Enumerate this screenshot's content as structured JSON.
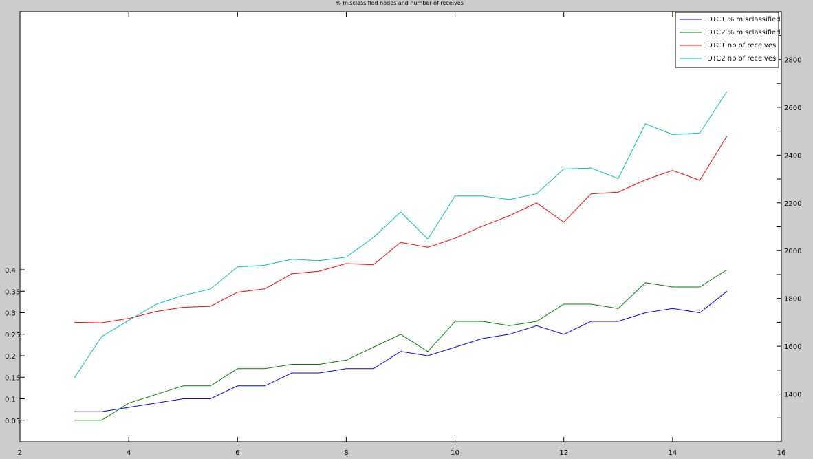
{
  "chart_data": {
    "type": "line",
    "title": "% misclassified nodes and number of receives",
    "xlim": [
      2,
      16
    ],
    "x_ticks": [
      2,
      4,
      6,
      8,
      10,
      12,
      14,
      16
    ],
    "left_axis": {
      "ylim": [
        0,
        1
      ],
      "ticks": [
        0.05,
        0.1,
        0.15,
        0.2,
        0.25,
        0.3,
        0.35,
        0.4
      ],
      "tick_labels": [
        "0.05",
        "0.1",
        "0.15",
        "0.2",
        "0.25",
        "0.3",
        "0.35",
        "0.4"
      ]
    },
    "right_axis": {
      "ylim": [
        1200,
        3000
      ],
      "ticks": [
        1200,
        1300,
        1400,
        1500,
        1600,
        1700,
        1800,
        1900,
        2000,
        2100,
        2200,
        2300,
        2400,
        2500,
        2600,
        2700,
        2800,
        2900
      ],
      "tick_labels": [
        "",
        "",
        "1400",
        "",
        "1600",
        "",
        "1800",
        "",
        "2000",
        "",
        "2200",
        "",
        "2400",
        "",
        "2600",
        "",
        "2800",
        ""
      ]
    },
    "grid": false,
    "legend_position": "top-right",
    "x": [
      3,
      3.5,
      4,
      4.5,
      5,
      5.5,
      6,
      6.5,
      7,
      7.5,
      8,
      8.5,
      9,
      9.5,
      10,
      10.5,
      11,
      11.5,
      12,
      12.5,
      13,
      13.5,
      14,
      14.5,
      15
    ],
    "series": [
      {
        "name": "DTC1 % misclassified",
        "axis": "left",
        "color": "#0000ff",
        "values": [
          0.07,
          0.07,
          0.08,
          0.09,
          0.1,
          0.1,
          0.13,
          0.13,
          0.16,
          0.16,
          0.17,
          0.17,
          0.21,
          0.2,
          0.22,
          0.24,
          0.25,
          0.27,
          0.25,
          0.28,
          0.28,
          0.3,
          0.31,
          0.3,
          0.35
        ]
      },
      {
        "name": "DTC2 % misclassified",
        "axis": "left",
        "color": "#007f00",
        "values": [
          0.05,
          0.05,
          0.09,
          0.11,
          0.13,
          0.13,
          0.17,
          0.17,
          0.18,
          0.18,
          0.19,
          0.22,
          0.25,
          0.21,
          0.28,
          0.28,
          0.27,
          0.28,
          0.32,
          0.32,
          0.31,
          0.37,
          0.36,
          0.36,
          0.4
        ]
      },
      {
        "name": "DTC1 nb of receives",
        "axis": "right",
        "color": "#ff0000",
        "values": [
          1700,
          1698,
          1716,
          1745,
          1763,
          1767,
          1826,
          1840,
          1903,
          1914,
          1946,
          1941,
          2035,
          2014,
          2052,
          2102,
          2146,
          2200,
          2119,
          2238,
          2245,
          2296,
          2336,
          2294,
          2480
        ]
      },
      {
        "name": "DTC2 nb of receives",
        "axis": "right",
        "color": "#00bfbf",
        "values": [
          1467,
          1640,
          1708,
          1775,
          1813,
          1839,
          1932,
          1939,
          1964,
          1958,
          1973,
          2055,
          2162,
          2048,
          2229,
          2229,
          2214,
          2238,
          2342,
          2346,
          2302,
          2531,
          2486,
          2492,
          2666
        ]
      }
    ]
  }
}
